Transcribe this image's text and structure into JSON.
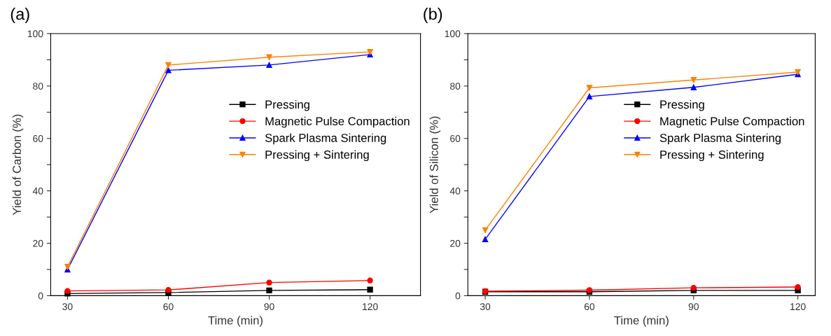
{
  "chart_data": [
    {
      "type": "line",
      "title": "(a)",
      "xlabel": "Time (min)",
      "ylabel": "Yield of Carbon (%)",
      "x": [
        30,
        60,
        90,
        120
      ],
      "xlim": [
        25,
        135
      ],
      "xticks": [
        30,
        60,
        90,
        120
      ],
      "ylim": [
        0,
        100
      ],
      "yticks": [
        0,
        {
          "value": 10,
          "label": null
        },
        20,
        {
          "value": 30,
          "label": null
        },
        40,
        {
          "value": 50,
          "label": null
        },
        60,
        {
          "value": 70,
          "label": null
        },
        80,
        {
          "value": 90,
          "label": null
        },
        100
      ],
      "grid": false,
      "legend": "center right",
      "line_style": "solid",
      "series": [
        {
          "name": "Pressing",
          "color": "#000000",
          "marker": "square",
          "values": [
            0.8,
            1.2,
            2,
            2.3
          ]
        },
        {
          "name": "Magnetic Pulse Compaction",
          "color": "#ff0000",
          "marker": "circle",
          "values": [
            1.8,
            2.2,
            5,
            5.8
          ]
        },
        {
          "name": "Spark Plasma Sintering",
          "color": "#0000ff",
          "marker": "triangle",
          "values": [
            10,
            86,
            88,
            92
          ]
        },
        {
          "name": "Pressing + Sintering",
          "color": "#ff8000",
          "marker": "triangle_down",
          "values": [
            11,
            88,
            91,
            93
          ]
        }
      ]
    },
    {
      "type": "line",
      "title": "(b)",
      "xlabel": "Time (min)",
      "ylabel": "Yield of Silicon (%)",
      "x": [
        30,
        60,
        90,
        120
      ],
      "xlim": [
        25,
        125
      ],
      "xticks": [
        30,
        60,
        90,
        120
      ],
      "ylim": [
        0,
        100
      ],
      "yticks": [
        0,
        {
          "value": 10,
          "label": null
        },
        20,
        {
          "value": 30,
          "label": null
        },
        40,
        {
          "value": 50,
          "label": null
        },
        60,
        {
          "value": 70,
          "label": null
        },
        80,
        {
          "value": 90,
          "label": null
        },
        100
      ],
      "grid": false,
      "legend": "center right",
      "line_style": "solid",
      "series": [
        {
          "name": "Pressing",
          "color": "#000000",
          "marker": "square",
          "values": [
            1.5,
            1.5,
            2,
            2
          ]
        },
        {
          "name": "Magnetic Pulse Compaction",
          "color": "#ff0000",
          "marker": "circle",
          "values": [
            1.7,
            2.1,
            3,
            3.3
          ]
        },
        {
          "name": "Spark Plasma Sintering",
          "color": "#0000ff",
          "marker": "triangle",
          "values": [
            21.5,
            76,
            79.5,
            84.5
          ]
        },
        {
          "name": "Pressing + Sintering",
          "color": "#ff8000",
          "marker": "triangle_down",
          "values": [
            25,
            79.3,
            82.3,
            85.3
          ]
        }
      ]
    }
  ]
}
